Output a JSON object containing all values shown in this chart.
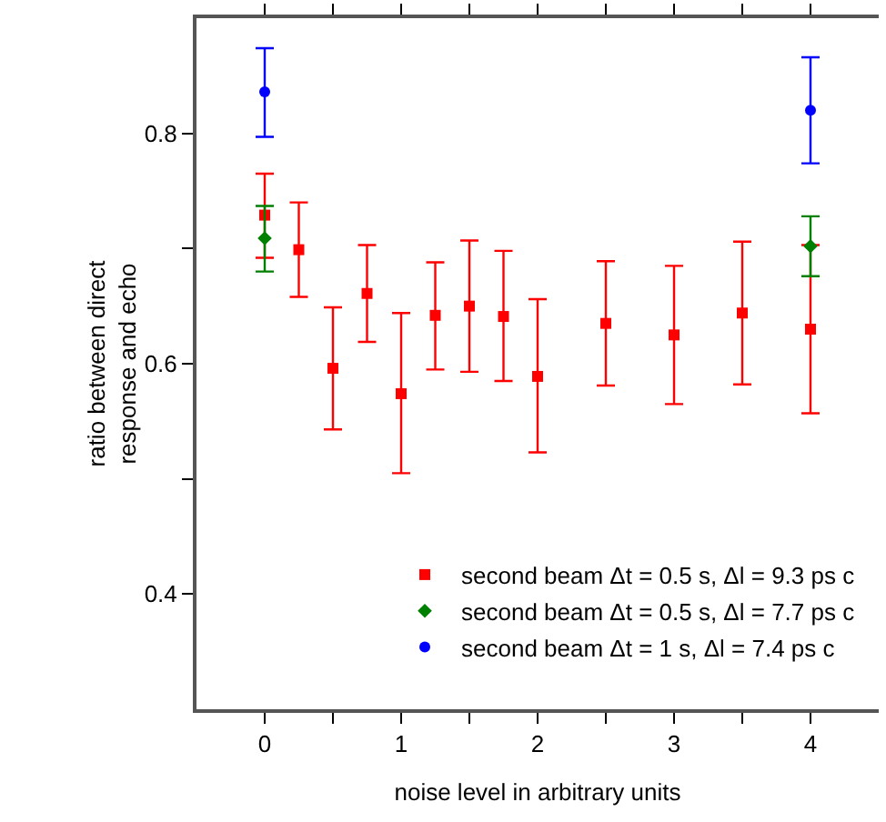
{
  "chart_data": {
    "type": "scatter",
    "xlabel": "noise level in arbitrary units",
    "ylabel": "ratio between direct\nresponse and echo",
    "xlim": [
      -0.5,
      4.5
    ],
    "xticks": [
      0,
      {
        "value": 0.5,
        "label": null
      },
      1,
      {
        "value": 1.5,
        "label": null
      },
      2,
      {
        "value": 2.5,
        "label": null
      },
      3,
      {
        "value": 3.5,
        "label": null
      },
      4
    ],
    "ylim": [
      0.3,
      0.9
    ],
    "yticks": [
      0.4,
      {
        "value": 0.5,
        "label": null
      },
      0.6,
      {
        "value": 0.7,
        "label": null
      },
      0.8
    ],
    "grid": false,
    "legend": "bottom right",
    "series": [
      {
        "name": "second beam Δt = 0.5 s, Δl = 9.3 ps c",
        "color": "#ff0000",
        "marker": "square",
        "x": [
          0,
          0.25,
          0.5,
          0.75,
          1,
          1.25,
          1.5,
          1.75,
          2,
          2.5,
          3,
          3.5,
          4
        ],
        "values": [
          0.729,
          0.699,
          0.596,
          0.661,
          0.574,
          0.642,
          0.65,
          0.641,
          0.589,
          0.635,
          0.625,
          0.644,
          0.63
        ],
        "errors": [
          [
            0.692,
            0.765
          ],
          [
            0.658,
            0.74
          ],
          [
            0.543,
            0.649
          ],
          [
            0.619,
            0.703
          ],
          [
            0.505,
            0.644
          ],
          [
            0.595,
            0.688
          ],
          [
            0.593,
            0.707
          ],
          [
            0.585,
            0.698
          ],
          [
            0.523,
            0.656
          ],
          [
            0.581,
            0.689
          ],
          [
            0.565,
            0.685
          ],
          [
            0.582,
            0.706
          ],
          [
            0.557,
            0.703
          ]
        ]
      },
      {
        "name": "second beam Δt = 0.5 s, Δl = 7.7 ps c",
        "color": "#008000",
        "marker": "diamond",
        "x": [
          0,
          4
        ],
        "values": [
          0.709,
          0.702
        ],
        "errors": [
          [
            0.68,
            0.737
          ],
          [
            0.676,
            0.728
          ]
        ]
      },
      {
        "name": "second beam Δt = 1 s, Δl = 7.4 ps c",
        "color": "#0000ff",
        "marker": "circle",
        "x": [
          0,
          4
        ],
        "values": [
          0.836,
          0.82
        ],
        "errors": [
          [
            0.797,
            0.874
          ],
          [
            0.774,
            0.866
          ]
        ]
      }
    ]
  }
}
